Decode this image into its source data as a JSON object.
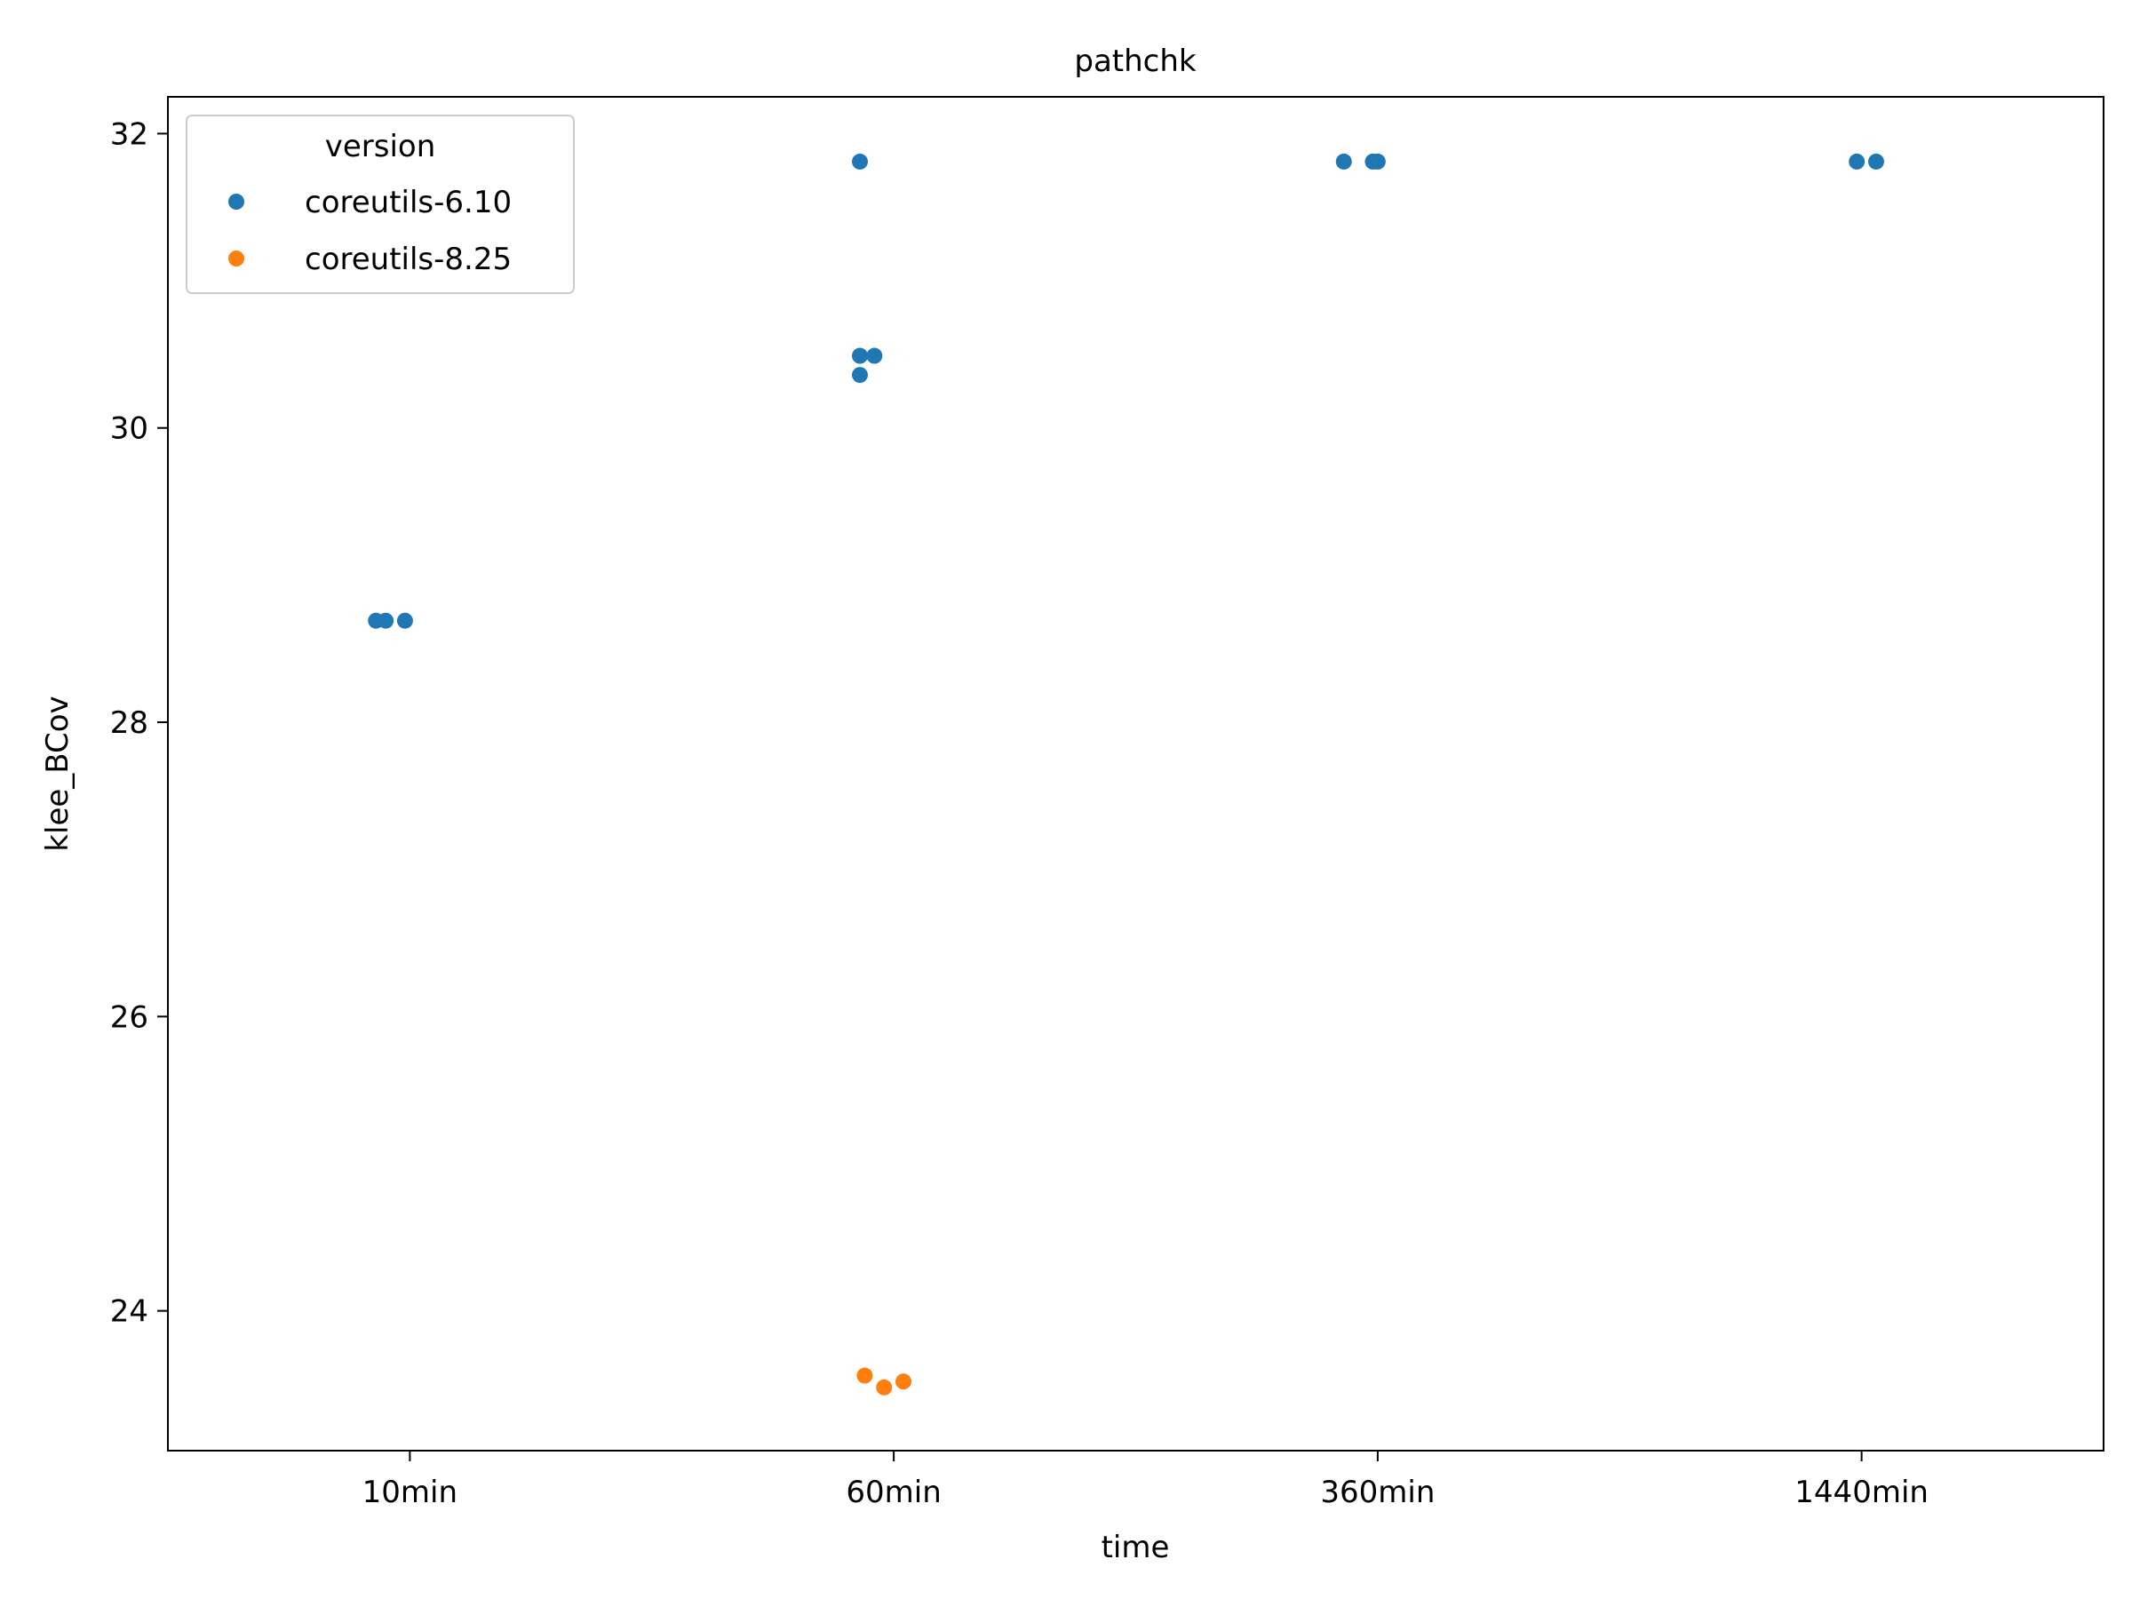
{
  "chart_data": {
    "type": "scatter",
    "title": "pathchk",
    "xlabel": "time",
    "ylabel": "klee_BCov",
    "categories": [
      "10min",
      "60min",
      "360min",
      "1440min"
    ],
    "ylim": [
      23.05,
      32.25
    ],
    "yticks": [
      24,
      26,
      28,
      30,
      32
    ],
    "legend": {
      "title": "version",
      "placement": "top-left"
    },
    "series": [
      {
        "name": "coreutils-6.10",
        "color": "#1f77b4",
        "points": [
          {
            "category": "10min",
            "jitter": -0.07,
            "y": 28.69
          },
          {
            "category": "10min",
            "jitter": -0.05,
            "y": 28.69
          },
          {
            "category": "10min",
            "jitter": -0.01,
            "y": 28.69
          },
          {
            "category": "60min",
            "jitter": -0.07,
            "y": 31.81
          },
          {
            "category": "60min",
            "jitter": -0.07,
            "y": 30.49
          },
          {
            "category": "60min",
            "jitter": -0.04,
            "y": 30.49
          },
          {
            "category": "60min",
            "jitter": -0.07,
            "y": 30.36
          },
          {
            "category": "360min",
            "jitter": -0.07,
            "y": 31.81
          },
          {
            "category": "360min",
            "jitter": -0.01,
            "y": 31.81
          },
          {
            "category": "360min",
            "jitter": 0.0,
            "y": 31.81
          },
          {
            "category": "1440min",
            "jitter": -0.01,
            "y": 31.81
          },
          {
            "category": "1440min",
            "jitter": 0.03,
            "y": 31.81
          }
        ]
      },
      {
        "name": "coreutils-8.25",
        "color": "#ff7f0e",
        "points": [
          {
            "category": "60min",
            "jitter": -0.06,
            "y": 23.56
          },
          {
            "category": "60min",
            "jitter": -0.02,
            "y": 23.48
          },
          {
            "category": "60min",
            "jitter": 0.02,
            "y": 23.52
          }
        ]
      }
    ]
  }
}
